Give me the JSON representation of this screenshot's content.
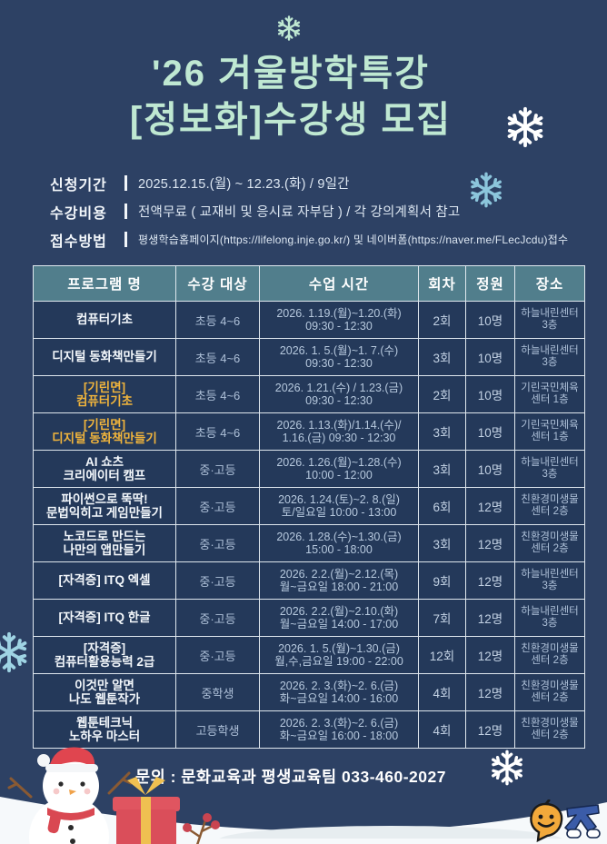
{
  "colors": {
    "background": "#2d4164",
    "title_mint": "#bfe8d2",
    "table_header_teal": "#517e8c",
    "highlight_yellow": "#f0b43c",
    "cell_text": "#aec0d8",
    "snow_white": "#f6f9fb",
    "snowflake_blue": "#8cc6dc"
  },
  "title": {
    "line1": "'26 겨울방학특강",
    "line2": "[정보화]수강생 모집"
  },
  "info": {
    "items": [
      {
        "label": "신청기간",
        "value": "2025.12.15.(월) ~ 12.23.(화) / 9일간"
      },
      {
        "label": "수강비용",
        "value": "전액무료 ( 교재비 및 응시료 자부담 ) / 각 강의계획서 참고"
      },
      {
        "label": "접수방법",
        "value": "평생학습홈페이지(https://lifelong.inje.go.kr/) 및 네이버폼(https://naver.me/FLecJcdu)접수"
      }
    ]
  },
  "table": {
    "headers": [
      "프로그램 명",
      "수강 대상",
      "수업 시간",
      "회차",
      "정원",
      "장소"
    ],
    "rows": [
      {
        "name_lines": [
          "컴퓨터기초"
        ],
        "name_color": "white",
        "target": "초등 4~6",
        "time_lines": [
          "2026. 1.19.(월)~1.20.(화)",
          "09:30 - 12:30"
        ],
        "sessions": "2회",
        "capacity": "10명",
        "place_lines": [
          "하늘내린센터",
          "3층"
        ]
      },
      {
        "name_lines": [
          "디지털 동화책만들기"
        ],
        "name_color": "white",
        "target": "초등 4~6",
        "time_lines": [
          "2026. 1. 5.(월)~1. 7.(수)",
          "09:30 - 12:30"
        ],
        "sessions": "3회",
        "capacity": "10명",
        "place_lines": [
          "하늘내린센터",
          "3층"
        ]
      },
      {
        "name_lines": [
          "[기린면]",
          "컴퓨터기초"
        ],
        "name_color": "yellow",
        "target": "초등 4~6",
        "time_lines": [
          "2026. 1.21.(수) / 1.23.(금)",
          "09:30 - 12:30"
        ],
        "sessions": "2회",
        "capacity": "10명",
        "place_lines": [
          "기린국민체육",
          "센터 1층"
        ]
      },
      {
        "name_lines": [
          "[기린면]",
          "디지털 동화책만들기"
        ],
        "name_color": "yellow",
        "target": "초등 4~6",
        "time_lines": [
          "2026. 1.13.(화)/1.14.(수)/",
          "1.16.(금)  09:30 - 12:30"
        ],
        "sessions": "3회",
        "capacity": "10명",
        "place_lines": [
          "기린국민체육",
          "센터 1층"
        ]
      },
      {
        "name_lines": [
          "AI 쇼츠",
          "크리에이터 캠프"
        ],
        "name_color": "white",
        "target": "중·고등",
        "time_lines": [
          "2026. 1.26.(월)~1.28.(수)",
          "10:00 - 12:00"
        ],
        "sessions": "3회",
        "capacity": "10명",
        "place_lines": [
          "하늘내린센터",
          "3층"
        ]
      },
      {
        "name_lines": [
          "파이썬으로 뚝딱!",
          "문법익히고 게임만들기"
        ],
        "name_color": "white",
        "target": "중·고등",
        "time_lines": [
          "2026. 1.24.(토)~2. 8.(일)",
          "토/일요일 10:00 - 13:00"
        ],
        "sessions": "6회",
        "capacity": "12명",
        "place_lines": [
          "친환경미생물",
          "센터 2층"
        ]
      },
      {
        "name_lines": [
          "노코드로 만드는",
          "나만의 앱만들기"
        ],
        "name_color": "white",
        "target": "중·고등",
        "time_lines": [
          "2026. 1.28.(수)~1.30.(금)",
          "15:00 - 18:00"
        ],
        "sessions": "3회",
        "capacity": "12명",
        "place_lines": [
          "친환경미생물",
          "센터 2층"
        ]
      },
      {
        "name_lines": [
          "[자격증] ITQ 엑셀"
        ],
        "name_color": "white",
        "target": "중·고등",
        "time_lines": [
          "2026. 2.2.(월)~2.12.(목)",
          "월~금요일 18:00 - 21:00"
        ],
        "sessions": "9회",
        "capacity": "12명",
        "place_lines": [
          "하늘내린센터",
          "3층"
        ]
      },
      {
        "name_lines": [
          "[자격증] ITQ 한글"
        ],
        "name_color": "white",
        "target": "중·고등",
        "time_lines": [
          "2026. 2.2.(월)~2.10.(화)",
          "월~금요일 14:00 - 17:00"
        ],
        "sessions": "7회",
        "capacity": "12명",
        "place_lines": [
          "하늘내린센터",
          "3층"
        ]
      },
      {
        "name_lines": [
          "[자격증]",
          "컴퓨터활용능력 2급"
        ],
        "name_color": "white",
        "target": "중·고등",
        "time_lines": [
          "2026. 1. 5.(월)~1.30.(금)",
          "월,수,금요일 19:00 - 22:00"
        ],
        "sessions": "12회",
        "capacity": "12명",
        "place_lines": [
          "친환경미생물",
          "센터 2층"
        ]
      },
      {
        "name_lines": [
          "이것만 알면",
          "나도 웹툰작가"
        ],
        "name_color": "white",
        "target": "중학생",
        "time_lines": [
          "2026. 2. 3.(화)~2. 6.(금)",
          "화~금요일 14:00 - 16:00"
        ],
        "sessions": "4회",
        "capacity": "12명",
        "place_lines": [
          "친환경미생물",
          "센터 2층"
        ]
      },
      {
        "name_lines": [
          "웹툰테크닉",
          "노하우 마스터"
        ],
        "name_color": "white",
        "target": "고등학생",
        "time_lines": [
          "2026. 2. 3.(화)~2. 6.(금)",
          "화~금요일 16:00 - 18:00"
        ],
        "sessions": "4회",
        "capacity": "12명",
        "place_lines": [
          "친환경미생물",
          "센터 2층"
        ]
      }
    ]
  },
  "footer": {
    "contact": "문의 : 문화교육과 평생교육팀  033-460-2027"
  }
}
